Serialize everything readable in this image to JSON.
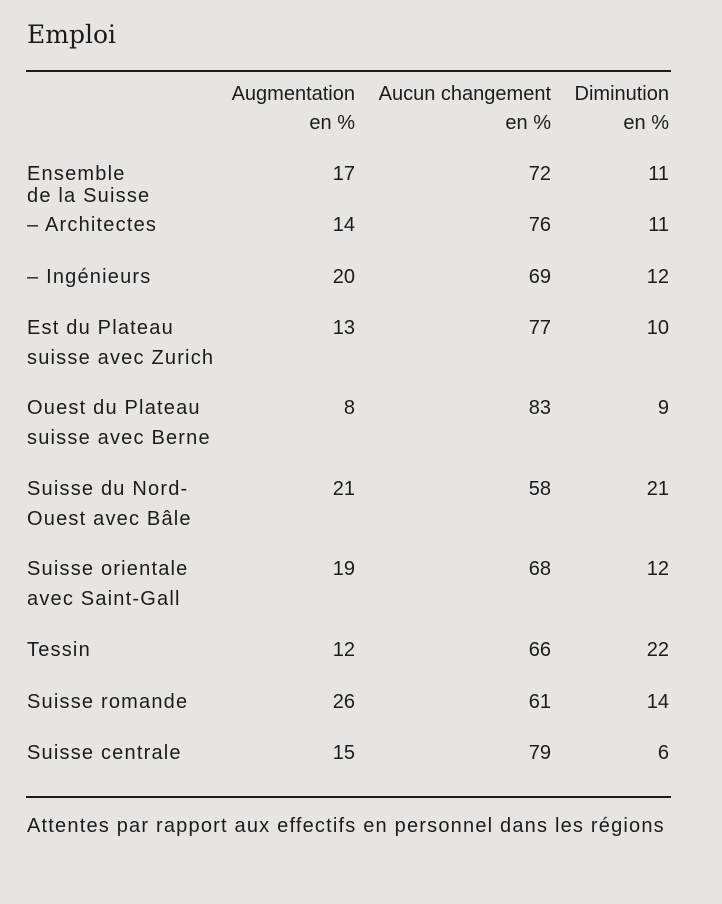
{
  "title": "Emploi",
  "columns": [
    {
      "label": "Augmentation",
      "unit": "en %"
    },
    {
      "label": "Aucun changement",
      "unit": "en %"
    },
    {
      "label": "Diminution",
      "unit": "en %"
    }
  ],
  "rows": [
    {
      "label": "Ensemble\nde la Suisse",
      "values": [
        "17",
        "72",
        "11"
      ]
    },
    {
      "label": "– Architectes",
      "values": [
        "14",
        "76",
        "11"
      ]
    },
    {
      "label": "– Ingénieurs",
      "values": [
        "20",
        "69",
        "12"
      ]
    },
    {
      "label": "Est du Plateau\nsuisse avec Zurich",
      "values": [
        "13",
        "77",
        "10"
      ]
    },
    {
      "label": "Ouest du Plateau\nsuisse avec Berne",
      "values": [
        "8",
        "83",
        "9"
      ]
    },
    {
      "label": "Suisse du Nord-\nOuest avec Bâle",
      "values": [
        "21",
        "58",
        "21"
      ]
    },
    {
      "label": "Suisse orientale\navec Saint-Gall",
      "values": [
        "19",
        "68",
        "12"
      ]
    },
    {
      "label": "Tessin",
      "values": [
        "12",
        "66",
        "22"
      ]
    },
    {
      "label": "Suisse romande",
      "values": [
        "26",
        "61",
        "14"
      ]
    },
    {
      "label": "Suisse centrale",
      "values": [
        "15",
        "79",
        "6"
      ]
    }
  ],
  "footnote": "Attentes par rapport aux effectifs en personnel dans les régions"
}
